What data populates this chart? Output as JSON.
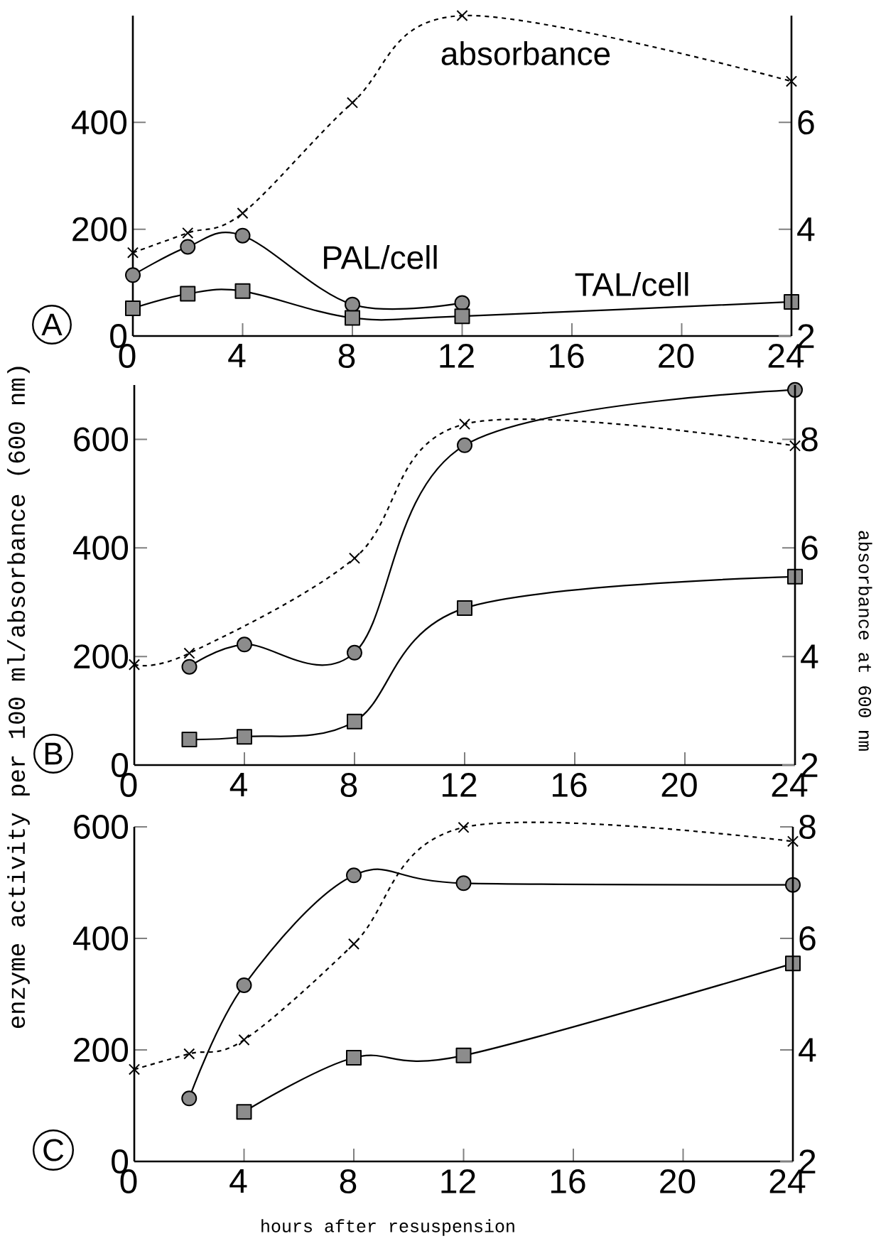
{
  "chart_data": [
    {
      "type": "line",
      "xlim": [
        0,
        24
      ],
      "xticks": [
        0,
        4,
        8,
        12,
        16,
        20,
        24
      ],
      "ylim": [
        0,
        600
      ],
      "yticks": [
        0,
        200,
        400
      ],
      "y2lim": [
        2,
        8
      ],
      "y2ticks": [
        2,
        4,
        6
      ],
      "legend": false,
      "grid": false,
      "series": [
        {
          "axis": "y2",
          "color": "#000000",
          "marker": "cross",
          "line_style": "dashed",
          "x": [
            0,
            2,
            4,
            8,
            12,
            24
          ],
          "values": [
            3.56,
            3.93,
            4.3,
            6.37,
            8.0,
            6.77
          ]
        },
        {
          "axis": "y",
          "color": "#000000",
          "marker": "circle",
          "line_style": "solid",
          "x": [
            0,
            2,
            4,
            8,
            12
          ],
          "values": [
            114,
            167,
            188,
            59,
            62
          ]
        },
        {
          "axis": "y",
          "color": "#000000",
          "marker": "square",
          "line_style": "solid",
          "x": [
            0,
            2,
            4,
            8,
            12,
            24
          ],
          "values": [
            52,
            79,
            84,
            34,
            37,
            64
          ]
        }
      ],
      "annotations": [
        "A",
        "absorbance",
        "PAL/cell",
        "TAL/cell"
      ]
    },
    {
      "type": "line",
      "xlim": [
        0,
        24
      ],
      "xticks": [
        0,
        4,
        8,
        12,
        16,
        20,
        24
      ],
      "ylim": [
        0,
        700
      ],
      "yticks": [
        0,
        200,
        400,
        600
      ],
      "y2lim": [
        2,
        9
      ],
      "y2ticks": [
        2,
        4,
        6,
        8
      ],
      "legend": false,
      "grid": false,
      "ylabel": "enzyme activity per 100 ml/absorbance (600 nm)",
      "y2label": "absorbance at 600 nm",
      "series": [
        {
          "axis": "y2",
          "color": "#000000",
          "marker": "cross",
          "line_style": "dashed",
          "x": [
            0,
            2,
            8,
            12,
            24
          ],
          "values": [
            3.85,
            4.06,
            5.81,
            8.28,
            7.88
          ]
        },
        {
          "axis": "y",
          "color": "#000000",
          "marker": "circle",
          "line_style": "solid",
          "x": [
            2,
            4,
            8,
            12,
            24
          ],
          "values": [
            181,
            222,
            207,
            589,
            691
          ]
        },
        {
          "axis": "y",
          "color": "#000000",
          "marker": "square",
          "line_style": "solid",
          "x": [
            2,
            4,
            8,
            12,
            24
          ],
          "values": [
            47,
            52,
            80,
            289,
            347
          ]
        }
      ],
      "annotations": [
        "B"
      ]
    },
    {
      "type": "line",
      "xlim": [
        0,
        24
      ],
      "xticks": [
        0,
        4,
        8,
        12,
        16,
        20,
        24
      ],
      "ylim": [
        0,
        600
      ],
      "yticks": [
        0,
        200,
        400,
        600
      ],
      "y2lim": [
        2,
        8
      ],
      "y2ticks": [
        2,
        4,
        6,
        8
      ],
      "legend": false,
      "grid": false,
      "xlabel": "hours after resuspension",
      "series": [
        {
          "axis": "y2",
          "color": "#000000",
          "marker": "cross",
          "line_style": "dashed",
          "x": [
            0,
            2,
            4,
            8,
            12,
            24
          ],
          "values": [
            3.65,
            3.93,
            4.18,
            5.9,
            7.99,
            7.74
          ]
        },
        {
          "axis": "y",
          "color": "#000000",
          "marker": "circle",
          "line_style": "solid",
          "x": [
            2,
            4,
            8,
            12,
            24
          ],
          "values": [
            113,
            316,
            513,
            499,
            496
          ]
        },
        {
          "axis": "y",
          "color": "#000000",
          "marker": "square",
          "line_style": "solid",
          "x": [
            4,
            8,
            12,
            24
          ],
          "values": [
            89,
            186,
            190,
            355
          ]
        }
      ],
      "annotations": [
        "C"
      ]
    }
  ]
}
